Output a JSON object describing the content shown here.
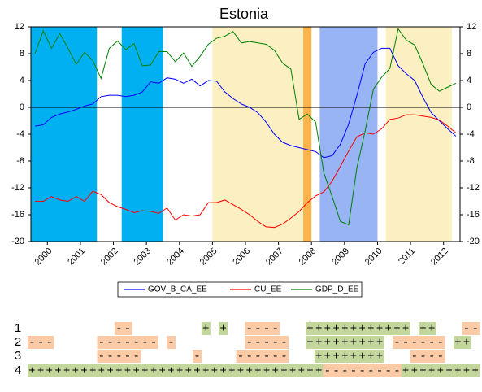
{
  "chart_data": {
    "type": "line",
    "title": "Estonia",
    "x": [
      2000.125,
      2000.375,
      2000.625,
      2000.875,
      2001.125,
      2001.375,
      2001.625,
      2001.875,
      2002.125,
      2002.375,
      2002.625,
      2002.875,
      2003.125,
      2003.375,
      2003.625,
      2003.875,
      2004.125,
      2004.375,
      2004.625,
      2004.875,
      2005.125,
      2005.375,
      2005.625,
      2005.875,
      2006.125,
      2006.375,
      2006.625,
      2006.875,
      2007.125,
      2007.375,
      2007.625,
      2007.875,
      2008.125,
      2008.375,
      2008.625,
      2008.875,
      2009.125,
      2009.375,
      2009.625,
      2009.875,
      2010.125,
      2010.375,
      2010.625,
      2010.875,
      2011.125,
      2011.375,
      2011.625,
      2011.875,
      2012.125,
      2012.375,
      2012.625,
      2012.875
    ],
    "xlim": [
      2000,
      2013
    ],
    "xticks": [
      {
        "value": 2000.5,
        "label": "2000"
      },
      {
        "value": 2001.5,
        "label": "2001"
      },
      {
        "value": 2002.5,
        "label": "2002"
      },
      {
        "value": 2003.5,
        "label": "2003"
      },
      {
        "value": 2004.5,
        "label": "2004"
      },
      {
        "value": 2005.5,
        "label": "2005"
      },
      {
        "value": 2006.5,
        "label": "2006"
      },
      {
        "value": 2007.5,
        "label": "2007"
      },
      {
        "value": 2008.5,
        "label": "2008"
      },
      {
        "value": 2009.5,
        "label": "2009"
      },
      {
        "value": 2010.5,
        "label": "2010"
      },
      {
        "value": 2011.5,
        "label": "2011"
      },
      {
        "value": 2012.5,
        "label": "2012"
      }
    ],
    "ylim": [
      -20,
      12
    ],
    "yticks": [
      -20,
      -16,
      -12,
      -8,
      -4,
      0,
      4,
      8,
      12
    ],
    "hline": 0,
    "shaded_regions": [
      {
        "start": 2000.0,
        "end": 2002.0,
        "color": "#00b0f0"
      },
      {
        "start": 2002.75,
        "end": 2004.0,
        "color": "#00b0f0"
      },
      {
        "start": 2005.5,
        "end": 2008.25,
        "color": "#fcf0c2"
      },
      {
        "start": 2008.25,
        "end": 2008.5,
        "color": "#fbb34c"
      },
      {
        "start": 2008.75,
        "end": 2010.5,
        "color": "#99b4f4"
      },
      {
        "start": 2010.75,
        "end": 2012.75,
        "color": "#fcf0c2"
      }
    ],
    "series": [
      {
        "name": "GOV_B_CA_EE",
        "color": "#0000ff",
        "values": [
          -2.8,
          -2.6,
          -1.5,
          -1.0,
          -0.7,
          -0.3,
          0.2,
          0.5,
          1.6,
          1.8,
          1.8,
          1.6,
          1.8,
          2.3,
          3.8,
          3.6,
          4.4,
          4.2,
          3.6,
          4.2,
          3.2,
          4.0,
          3.9,
          2.3,
          1.3,
          0.5,
          0.0,
          -0.8,
          -2.2,
          -4.0,
          -5.2,
          -5.7,
          -6.0,
          -6.3,
          -6.6,
          -7.5,
          -7.2,
          -5.5,
          -2.5,
          1.8,
          6.5,
          8.2,
          8.8,
          8.8,
          6.2,
          5.0,
          4.0,
          1.5,
          -0.8,
          -2.0,
          -3.2,
          -4.3
        ]
      },
      {
        "name": "CU_EE",
        "color": "#ff0000",
        "values": [
          -14.0,
          -14.0,
          -13.3,
          -13.8,
          -14.0,
          -13.3,
          -14.0,
          -12.5,
          -13.0,
          -14.2,
          -14.8,
          -15.2,
          -15.7,
          -15.4,
          -15.5,
          -15.8,
          -15.0,
          -16.8,
          -16.0,
          -16.2,
          -16.0,
          -14.2,
          -14.2,
          -13.8,
          -14.5,
          -15.2,
          -16.0,
          -17.0,
          -17.8,
          -17.9,
          -17.4,
          -16.5,
          -15.5,
          -14.2,
          -13.2,
          -12.6,
          -11.0,
          -8.8,
          -6.5,
          -4.4,
          -3.8,
          -4.0,
          -3.2,
          -1.8,
          -1.6,
          -1.1,
          -1.1,
          -1.3,
          -1.5,
          -1.9,
          -2.8,
          -3.8
        ]
      },
      {
        "name": "GDP_D_EE",
        "color": "#008000",
        "values": [
          8.0,
          11.4,
          8.8,
          11.0,
          8.8,
          6.4,
          8.2,
          7.0,
          4.3,
          8.8,
          9.9,
          8.6,
          9.5,
          6.2,
          6.3,
          8.3,
          8.3,
          6.8,
          8.1,
          6.1,
          7.6,
          9.4,
          10.3,
          10.6,
          11.3,
          9.6,
          9.8,
          9.6,
          9.4,
          8.5,
          6.6,
          5.7,
          -1.8,
          -1.0,
          -2.2,
          -9.8,
          -13.3,
          -17.0,
          -17.5,
          -9.0,
          -3.5,
          2.7,
          4.5,
          5.8,
          11.7,
          10.0,
          9.3,
          6.5,
          3.4,
          2.4,
          3.0,
          3.6
        ]
      }
    ]
  },
  "sign_table": {
    "plus_color": "#c3d69b",
    "minus_color": "#fbcaa7",
    "rows": [
      {
        "label": "1",
        "cells": [
          null,
          null,
          null,
          null,
          null,
          null,
          null,
          null,
          null,
          null,
          "-",
          "-",
          null,
          null,
          null,
          null,
          null,
          null,
          null,
          null,
          "+",
          null,
          "+",
          null,
          null,
          "-",
          "-",
          "-",
          "-",
          null,
          null,
          null,
          "+",
          "+",
          "+",
          "+",
          "+",
          "+",
          "+",
          "+",
          "+",
          "+",
          "+",
          "+",
          null,
          "+",
          "+",
          null,
          null,
          null,
          "-",
          "-"
        ]
      },
      {
        "label": "2",
        "cells": [
          "-",
          "-",
          "-",
          null,
          null,
          null,
          null,
          null,
          "-",
          "-",
          "-",
          "-",
          "-",
          "-",
          "-",
          null,
          "-",
          null,
          null,
          null,
          null,
          null,
          null,
          null,
          null,
          "-",
          "-",
          "-",
          "-",
          "-",
          null,
          null,
          "+",
          "+",
          "+",
          "+",
          "+",
          "+",
          "+",
          "+",
          "+",
          null,
          "-",
          "-",
          "-",
          "-",
          "-",
          "-",
          null,
          "+",
          "+",
          null
        ]
      },
      {
        "label": "3",
        "cells": [
          null,
          null,
          null,
          null,
          null,
          null,
          null,
          null,
          "-",
          "-",
          "-",
          "-",
          "-",
          null,
          null,
          null,
          null,
          null,
          null,
          "-",
          null,
          null,
          null,
          null,
          "-",
          "-",
          "-",
          "-",
          "-",
          "-",
          null,
          null,
          null,
          "+",
          "+",
          "+",
          "+",
          "+",
          "+",
          "+",
          "+",
          null,
          null,
          null,
          "-",
          "-",
          "-",
          "-",
          null,
          null,
          null,
          null
        ]
      },
      {
        "label": "4",
        "cells": [
          "+",
          "+",
          "+",
          "+",
          "+",
          "+",
          "+",
          "+",
          "+",
          "+",
          "+",
          "+",
          "+",
          "+",
          "+",
          "+",
          "+",
          "+",
          "+",
          "+",
          "+",
          "+",
          "+",
          "+",
          "+",
          "+",
          "+",
          "+",
          "+",
          "+",
          "+",
          "+",
          "+",
          "+",
          "-",
          "-",
          "-",
          "-",
          "-",
          "-",
          "-",
          "-",
          "-",
          "+",
          "+",
          "+",
          "+",
          "+",
          "+",
          "+",
          "+",
          "+"
        ]
      }
    ]
  }
}
